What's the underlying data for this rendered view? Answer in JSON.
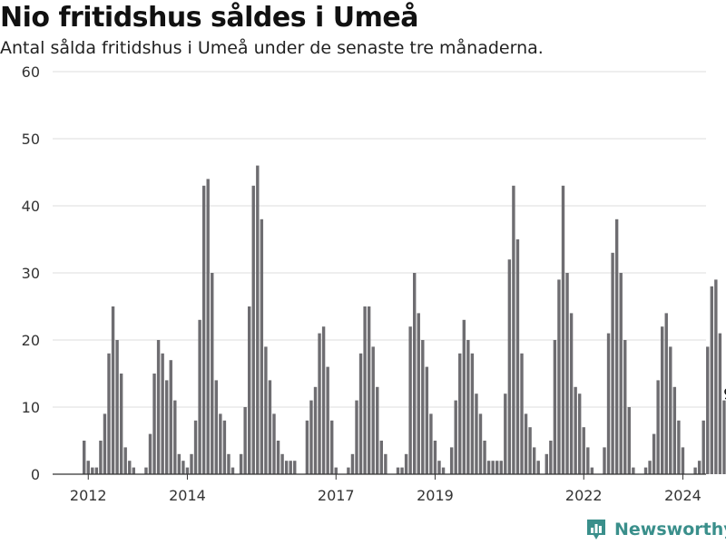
{
  "title": "Nio fritidshus såldes i Umeå",
  "subtitle": "Antal sålda fritidshus i Umeå under de senaste tre månaderna.",
  "brand": {
    "name": "Newsworthy",
    "color": "#3a8f8b",
    "icon": "bar-chart-pin-icon"
  },
  "colors": {
    "bar": "#6e6d71",
    "highlight": "#1a9a93",
    "grid": "#dddddd",
    "axis": "#333333"
  },
  "chart_data": {
    "type": "bar",
    "ylim": [
      0,
      60
    ],
    "yticks": [
      0,
      10,
      20,
      30,
      40,
      50,
      60
    ],
    "grid": true,
    "x_tick_labels": [
      {
        "label": "2012",
        "index": 1
      },
      {
        "label": "2014",
        "index": 25
      },
      {
        "label": "2017",
        "index": 61
      },
      {
        "label": "2019",
        "index": 85
      },
      {
        "label": "2022",
        "index": 121
      },
      {
        "label": "2024",
        "index": 145
      }
    ],
    "values": [
      5,
      2,
      1,
      1,
      5,
      9,
      18,
      25,
      20,
      15,
      4,
      2,
      1,
      0,
      0,
      1,
      6,
      15,
      20,
      18,
      14,
      17,
      11,
      3,
      2,
      1,
      3,
      8,
      23,
      43,
      44,
      30,
      14,
      9,
      8,
      3,
      1,
      0,
      3,
      10,
      25,
      43,
      46,
      38,
      19,
      14,
      9,
      5,
      3,
      2,
      2,
      2,
      0,
      0,
      8,
      11,
      13,
      21,
      22,
      16,
      8,
      1,
      0,
      0,
      1,
      3,
      11,
      18,
      25,
      25,
      19,
      13,
      5,
      3,
      0,
      0,
      1,
      1,
      3,
      22,
      30,
      24,
      20,
      16,
      9,
      5,
      2,
      1,
      0,
      4,
      11,
      18,
      23,
      20,
      18,
      12,
      9,
      5,
      2,
      2,
      2,
      2,
      12,
      32,
      43,
      35,
      18,
      9,
      7,
      4,
      2,
      0,
      3,
      5,
      20,
      29,
      43,
      30,
      24,
      13,
      12,
      7,
      4,
      1,
      0,
      0,
      4,
      21,
      33,
      38,
      30,
      20,
      10,
      1,
      0,
      0,
      1,
      2,
      6,
      14,
      22,
      24,
      19,
      13,
      8,
      4,
      0,
      0,
      1,
      2,
      8,
      19,
      28,
      29,
      21,
      11,
      9
    ],
    "highlight_label": "9"
  }
}
